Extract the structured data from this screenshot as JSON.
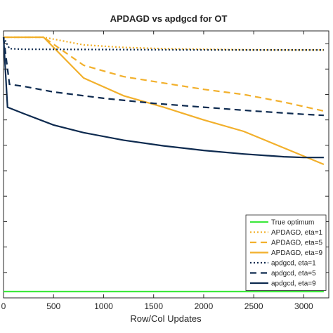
{
  "chart_data": {
    "type": "line",
    "title": "APDAGD vs apdgcd for OT",
    "xlabel": "Row/Col Updates",
    "ylabel": "",
    "xlim": [
      0,
      3250
    ],
    "ylim": [
      0,
      10.5
    ],
    "x_ticks": [
      0,
      500,
      1000,
      1500,
      2000,
      2500,
      3000
    ],
    "x_tick_labels": [
      "0",
      "500",
      "1000",
      "1500",
      "2000",
      "2500",
      "3000"
    ],
    "y_ticks": [
      1,
      2,
      3,
      4,
      5,
      6,
      7,
      8,
      9,
      10
    ],
    "grid": false,
    "legend_position": "bottom-right",
    "series": [
      {
        "name": "True optimum",
        "color": "#3ee83e",
        "style": "solid",
        "x": [
          0,
          3200
        ],
        "y": [
          0.25,
          0.25
        ]
      },
      {
        "name": "APDAGD, eta=1",
        "color": "#f2b02c",
        "style": "dotted",
        "x": [
          0,
          400,
          800,
          1200,
          1600,
          2000,
          2400,
          2800,
          3200
        ],
        "y": [
          10.25,
          10.25,
          9.95,
          9.85,
          9.8,
          9.78,
          9.76,
          9.75,
          9.75
        ]
      },
      {
        "name": "APDAGD, eta=5",
        "color": "#f2b02c",
        "style": "dashed",
        "x": [
          0,
          400,
          800,
          1200,
          1600,
          2000,
          2400,
          2800,
          3200
        ],
        "y": [
          10.25,
          10.25,
          9.15,
          8.7,
          8.45,
          8.2,
          8.0,
          7.7,
          7.35
        ]
      },
      {
        "name": "APDAGD, eta=9",
        "color": "#f2b02c",
        "style": "solid",
        "x": [
          0,
          400,
          800,
          1200,
          1600,
          2000,
          2400,
          2800,
          3200
        ],
        "y": [
          10.25,
          10.25,
          8.65,
          7.95,
          7.5,
          7.0,
          6.55,
          5.9,
          5.25
        ]
      },
      {
        "name": "apdgcd, eta=1",
        "color": "#0d2a4f",
        "style": "dotted",
        "x": [
          0,
          60,
          200,
          800,
          1600,
          2400,
          3200
        ],
        "y": [
          10.25,
          9.8,
          9.78,
          9.77,
          9.76,
          9.75,
          9.75
        ]
      },
      {
        "name": "apdgcd, eta=5",
        "color": "#0d2a4f",
        "style": "dashed",
        "x": [
          0,
          60,
          200,
          500,
          1000,
          1500,
          2000,
          2500,
          3000,
          3200
        ],
        "y": [
          10.25,
          8.4,
          8.32,
          8.1,
          7.85,
          7.65,
          7.5,
          7.35,
          7.22,
          7.18
        ]
      },
      {
        "name": "apdgcd, eta=9",
        "color": "#0d2a4f",
        "style": "solid",
        "x": [
          0,
          40,
          200,
          500,
          800,
          1200,
          1600,
          2000,
          2400,
          2800,
          3000,
          3200
        ],
        "y": [
          10.25,
          7.5,
          7.25,
          6.8,
          6.5,
          6.2,
          5.98,
          5.8,
          5.66,
          5.55,
          5.52,
          5.52
        ]
      }
    ]
  }
}
